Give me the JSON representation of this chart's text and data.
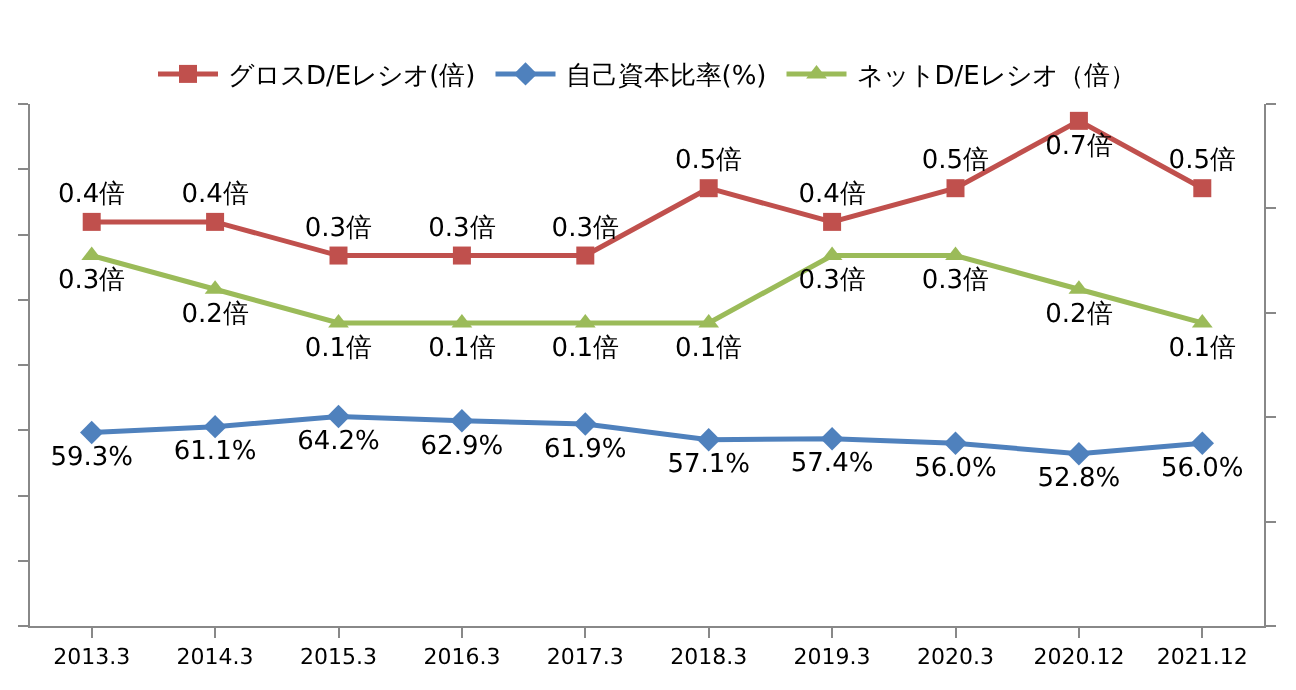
{
  "chart_data": {
    "type": "line",
    "categories": [
      "2013.3",
      "2014.3",
      "2015.3",
      "2016.3",
      "2017.3",
      "2018.3",
      "2019.3",
      "2020.3",
      "2020.12",
      "2021.12"
    ],
    "series": [
      {
        "name": "グロスD/Eレシオ(倍)",
        "color": "#c0504d",
        "marker": "square",
        "axis": "y2",
        "values": [
          0.4,
          0.4,
          0.3,
          0.3,
          0.3,
          0.5,
          0.4,
          0.5,
          0.7,
          0.5
        ],
        "value_labels": [
          "0.4倍",
          "0.4倍",
          "0.3倍",
          "0.3倍",
          "0.3倍",
          "0.5倍",
          "0.4倍",
          "0.5倍",
          "0.7倍",
          "0.5倍"
        ]
      },
      {
        "name": "自己資本比率(%)",
        "color": "#4f81bd",
        "marker": "diamond",
        "values": [
          59.3,
          61.1,
          64.2,
          62.9,
          61.9,
          57.1,
          57.4,
          56.0,
          52.8,
          56.0
        ],
        "value_labels": [
          "59.3%",
          "61.1%",
          "64.2%",
          "62.9%",
          "61.9%",
          "57.1%",
          "57.4%",
          "56.0%",
          "52.8%",
          "56.0%"
        ]
      },
      {
        "name": "ネットD/Eレシオ（倍）",
        "color": "#9bbb59",
        "marker": "triangle",
        "axis": "y2",
        "values": [
          0.3,
          0.2,
          0.1,
          0.1,
          0.1,
          0.1,
          0.3,
          0.3,
          0.2,
          0.1
        ],
        "value_labels": [
          "0.3倍",
          "0.2倍",
          "0.1倍",
          "0.1倍",
          "0.1倍",
          "0.1倍",
          "0.3倍",
          "0.3倍",
          "0.2倍",
          "0.1倍"
        ]
      }
    ],
    "ylim": [
      0,
      160
    ],
    "yticks": [
      {
        "value": 0,
        "label": null
      },
      {
        "value": 20,
        "label": null
      },
      {
        "value": 40,
        "label": null
      },
      {
        "value": 60,
        "label": null
      },
      {
        "value": 80,
        "label": null
      },
      {
        "value": 100,
        "label": null
      },
      {
        "value": 120,
        "label": null
      },
      {
        "value": 140,
        "label": null
      },
      {
        "value": 160,
        "label": null
      }
    ],
    "y2lim": [
      -0.8,
      0.75
    ],
    "y2ticks": [
      {
        "value": -0.8,
        "label": null
      },
      {
        "value": -0.49,
        "label": null
      },
      {
        "value": -0.18,
        "label": null
      },
      {
        "value": 0.13,
        "label": null
      },
      {
        "value": 0.44,
        "label": null
      },
      {
        "value": 0.75,
        "label": null
      }
    ],
    "tick_labels": "x",
    "legend": "top",
    "line_style": "solid"
  }
}
